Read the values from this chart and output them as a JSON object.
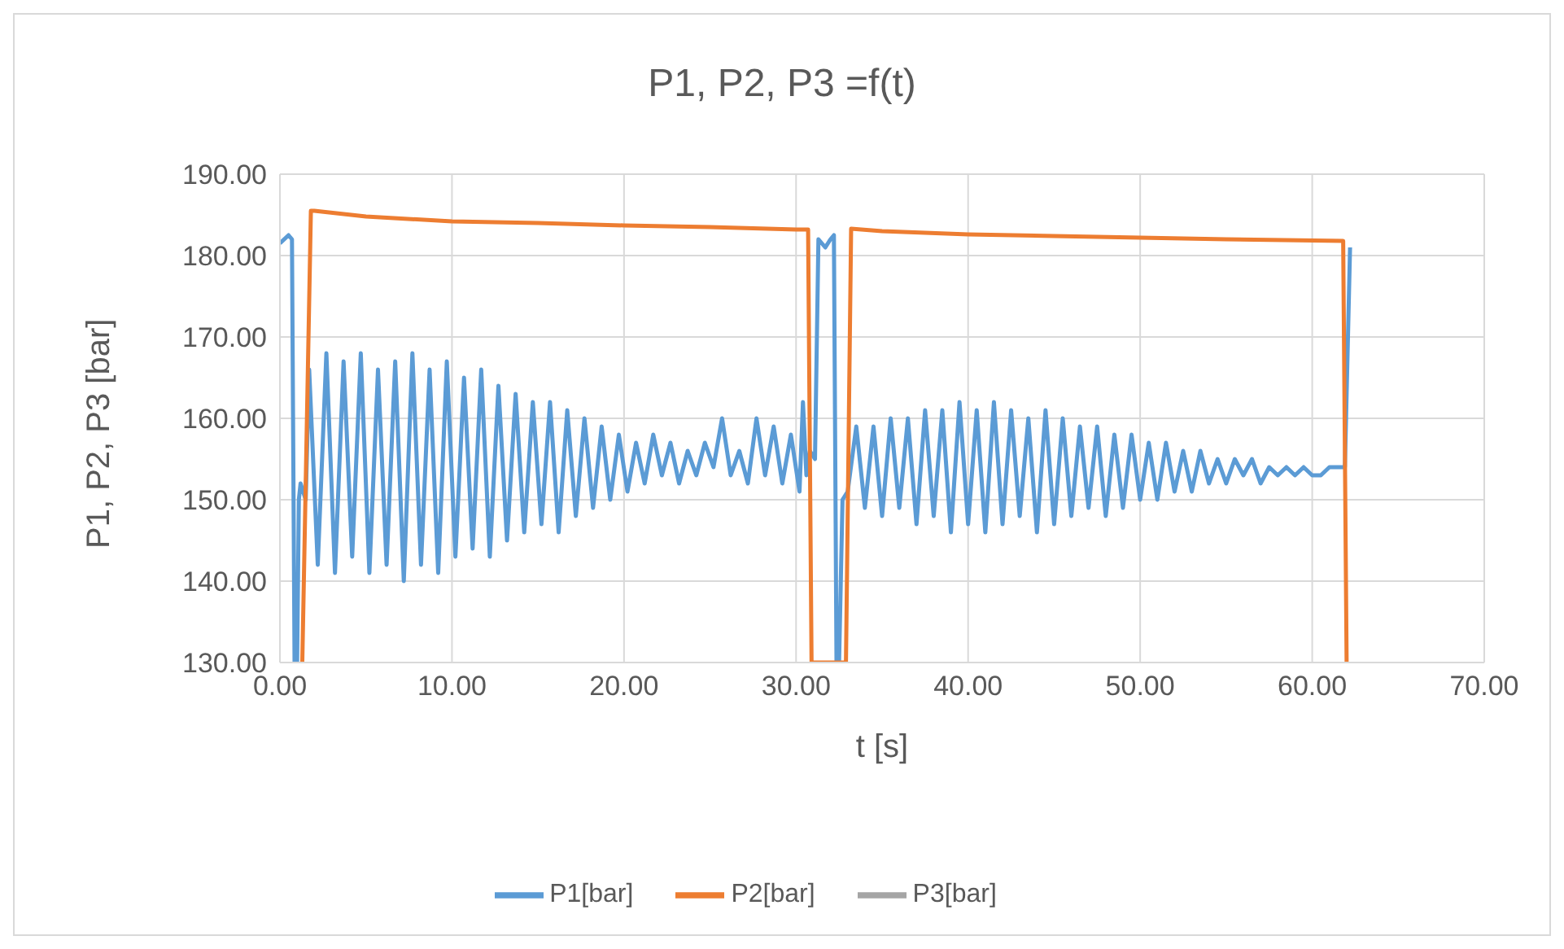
{
  "chart_data": {
    "type": "line",
    "title": "P1, P2, P3 =f(t)",
    "xlabel": "t [s]",
    "ylabel": "P1, P2, P3 [bar]",
    "xlim": [
      0,
      70
    ],
    "xticks": [
      {
        "value": 0,
        "label": "0.00"
      },
      {
        "value": 10,
        "label": "10.00"
      },
      {
        "value": 20,
        "label": "20.00"
      },
      {
        "value": 30,
        "label": "30.00"
      },
      {
        "value": 40,
        "label": "40.00"
      },
      {
        "value": 50,
        "label": "50.00"
      },
      {
        "value": 60,
        "label": "60.00"
      },
      {
        "value": 70,
        "label": "70.00"
      }
    ],
    "ylim": [
      130,
      190
    ],
    "yticks": [
      {
        "value": 130,
        "label": "130.00"
      },
      {
        "value": 140,
        "label": "140.00"
      },
      {
        "value": 150,
        "label": "150.00"
      },
      {
        "value": 160,
        "label": "160.00"
      },
      {
        "value": 170,
        "label": "170.00"
      },
      {
        "value": 180,
        "label": "180.00"
      },
      {
        "value": 190,
        "label": "190.00"
      }
    ],
    "grid": true,
    "legend": "bottom",
    "marker": "none",
    "line_style": "solid",
    "series": [
      {
        "name": "P1[bar]",
        "color": "#5b9bd5",
        "x": [
          0,
          0.5,
          0.7,
          0.85,
          1.0,
          1.1,
          1.2,
          1.5,
          1.7,
          2.2,
          2.7,
          3.2,
          3.7,
          4.2,
          4.7,
          5.2,
          5.7,
          6.2,
          6.7,
          7.2,
          7.7,
          8.2,
          8.7,
          9.2,
          9.7,
          10.2,
          10.7,
          11.2,
          11.7,
          12.2,
          12.7,
          13.2,
          13.7,
          14.2,
          14.7,
          15.2,
          15.7,
          16.2,
          16.7,
          17.2,
          17.7,
          18.2,
          18.7,
          19.2,
          19.7,
          20.2,
          20.7,
          21.2,
          21.7,
          22.2,
          22.7,
          23.2,
          23.7,
          24.2,
          24.7,
          25.2,
          25.7,
          26.2,
          26.7,
          27.2,
          27.7,
          28.2,
          28.7,
          29.2,
          29.7,
          30.2,
          30.4,
          30.6,
          30.8,
          31.1,
          31.3,
          31.7,
          32.0,
          32.2,
          32.35,
          32.5,
          32.7,
          33.0,
          33.5,
          34.0,
          34.5,
          35.0,
          35.5,
          36.0,
          36.5,
          37.0,
          37.5,
          38.0,
          38.5,
          39.0,
          39.5,
          40.0,
          40.5,
          41.0,
          41.5,
          42.0,
          42.5,
          43.0,
          43.5,
          44.0,
          44.5,
          45.0,
          45.5,
          46.0,
          46.5,
          47.0,
          47.5,
          48.0,
          48.5,
          49.0,
          49.5,
          50.0,
          50.5,
          51.0,
          51.5,
          52.0,
          52.5,
          53.0,
          53.5,
          54.0,
          54.5,
          55.0,
          55.5,
          56.0,
          56.5,
          57.0,
          57.5,
          58.0,
          58.5,
          59.0,
          59.5,
          60.0,
          60.5,
          61.0,
          61.5,
          61.9,
          62.2
        ],
        "values": [
          181.5,
          182.5,
          182,
          130,
          130,
          150,
          152,
          150,
          166,
          142,
          168,
          141,
          167,
          143,
          168,
          141,
          166,
          142,
          167,
          140,
          168,
          142,
          166,
          141,
          167,
          143,
          165,
          144,
          166,
          143,
          164,
          145,
          163,
          146,
          162,
          147,
          162,
          146,
          161,
          148,
          160,
          149,
          159,
          150,
          158,
          151,
          157,
          152,
          158,
          153,
          157,
          152,
          156,
          153,
          157,
          154,
          160,
          153,
          156,
          152,
          160,
          153,
          159,
          152,
          158,
          151,
          162,
          153,
          156,
          155,
          182,
          181,
          182,
          182.5,
          130,
          130,
          150,
          151,
          159,
          149,
          159,
          148,
          160,
          149,
          160,
          147,
          161,
          148,
          161,
          146,
          162,
          147,
          161,
          146,
          162,
          147,
          161,
          148,
          160,
          146,
          161,
          147,
          160,
          148,
          159,
          149,
          159,
          148,
          158,
          149,
          158,
          150,
          157,
          150,
          157,
          151,
          156,
          151,
          156,
          152,
          155,
          152,
          155,
          153,
          155,
          152,
          154,
          153,
          154,
          153,
          154,
          153,
          153,
          154,
          154,
          154,
          181
        ]
      },
      {
        "name": "P2[bar]",
        "color": "#ed7d31",
        "x": [
          1.3,
          1.8,
          2.0,
          5,
          10,
          15,
          20,
          25,
          30,
          30.7,
          30.9,
          32.9,
          33.2,
          35,
          40,
          45,
          50,
          55,
          61.8,
          62.0
        ],
        "values": [
          130,
          185.5,
          185.5,
          184.8,
          184.2,
          184,
          183.7,
          183.5,
          183.2,
          183.2,
          130,
          130,
          183.3,
          183,
          182.6,
          182.4,
          182.2,
          182,
          181.8,
          130
        ]
      },
      {
        "name": "P3[bar]",
        "color": "#a5a5a5"
      }
    ]
  }
}
